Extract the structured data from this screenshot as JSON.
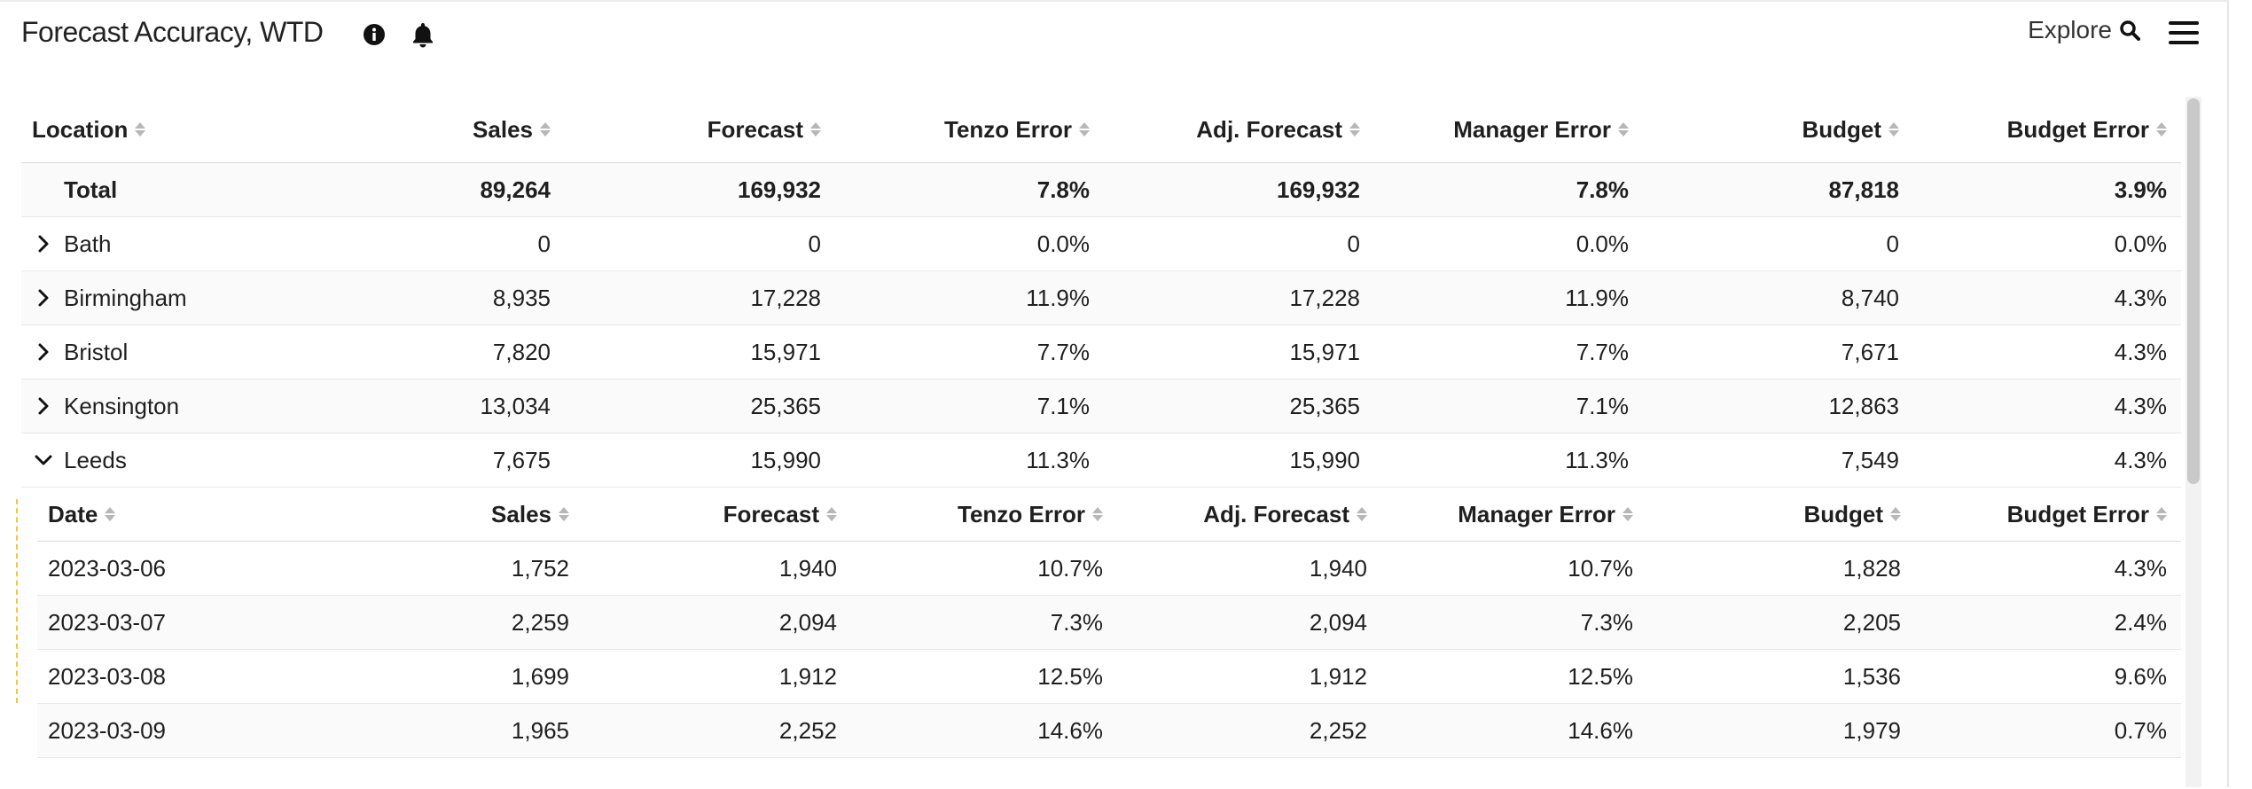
{
  "header": {
    "title": "Forecast Accuracy, WTD",
    "explore_label": "Explore",
    "info_icon": "info-circle-icon",
    "bell_icon": "bell-icon",
    "menu_icon": "hamburger-menu-icon"
  },
  "table": {
    "columns": [
      "Location",
      "Sales",
      "Forecast",
      "Tenzo Error",
      "Adj. Forecast",
      "Manager Error",
      "Budget",
      "Budget Error"
    ],
    "total": {
      "label": "Total",
      "values": [
        "89,264",
        "169,932",
        "7.8%",
        "169,932",
        "7.8%",
        "87,818",
        "3.9%"
      ]
    },
    "rows": [
      {
        "label": "Bath",
        "expanded": false,
        "values": [
          "0",
          "0",
          "0.0%",
          "0",
          "0.0%",
          "0",
          "0.0%"
        ]
      },
      {
        "label": "Birmingham",
        "expanded": false,
        "values": [
          "8,935",
          "17,228",
          "11.9%",
          "17,228",
          "11.9%",
          "8,740",
          "4.3%"
        ]
      },
      {
        "label": "Bristol",
        "expanded": false,
        "values": [
          "7,820",
          "15,971",
          "7.7%",
          "15,971",
          "7.7%",
          "7,671",
          "4.3%"
        ]
      },
      {
        "label": "Kensington",
        "expanded": false,
        "values": [
          "13,034",
          "25,365",
          "7.1%",
          "25,365",
          "7.1%",
          "12,863",
          "4.3%"
        ]
      },
      {
        "label": "Leeds",
        "expanded": true,
        "values": [
          "7,675",
          "15,990",
          "11.3%",
          "15,990",
          "11.3%",
          "7,549",
          "4.3%"
        ]
      }
    ],
    "sub_columns": [
      "Date",
      "Sales",
      "Forecast",
      "Tenzo Error",
      "Adj. Forecast",
      "Manager Error",
      "Budget",
      "Budget Error"
    ],
    "sub_rows": [
      {
        "label": "2023-03-06",
        "values": [
          "1,752",
          "1,940",
          "10.7%",
          "1,940",
          "10.7%",
          "1,828",
          "4.3%"
        ]
      },
      {
        "label": "2023-03-07",
        "values": [
          "2,259",
          "2,094",
          "7.3%",
          "2,094",
          "7.3%",
          "2,205",
          "2.4%"
        ]
      },
      {
        "label": "2023-03-08",
        "values": [
          "1,699",
          "1,912",
          "12.5%",
          "1,912",
          "12.5%",
          "1,536",
          "9.6%"
        ]
      },
      {
        "label": "2023-03-09",
        "values": [
          "1,965",
          "2,252",
          "14.6%",
          "2,252",
          "14.6%",
          "1,979",
          "0.7%"
        ]
      }
    ]
  }
}
